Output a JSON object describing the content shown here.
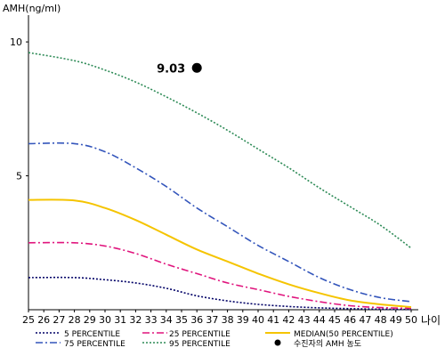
{
  "chart_data": {
    "type": "line",
    "ylabel": "AMH(ng/ml)",
    "xlabel": "나이",
    "xlim": [
      25,
      50
    ],
    "ylim": [
      0,
      11
    ],
    "x_ticks": [
      25,
      26,
      27,
      28,
      29,
      30,
      31,
      32,
      33,
      34,
      35,
      36,
      37,
      38,
      39,
      40,
      41,
      42,
      43,
      44,
      45,
      46,
      47,
      48,
      49,
      50
    ],
    "y_ticks": [
      5,
      10
    ],
    "series": [
      {
        "name": "5 PERCENTILE",
        "color": "#000066",
        "dash": "2,2",
        "points": [
          [
            25,
            1.2
          ],
          [
            28,
            1.2
          ],
          [
            30,
            1.12
          ],
          [
            32,
            1.0
          ],
          [
            34,
            0.8
          ],
          [
            36,
            0.52
          ],
          [
            38,
            0.33
          ],
          [
            40,
            0.2
          ],
          [
            42,
            0.12
          ],
          [
            44,
            0.07
          ],
          [
            46,
            0.04
          ],
          [
            48,
            0.02
          ],
          [
            50,
            0.01
          ]
        ]
      },
      {
        "name": "25 PERCENTILE",
        "color": "#e0147d",
        "dash": "8,3,2,3",
        "points": [
          [
            25,
            2.5
          ],
          [
            28,
            2.5
          ],
          [
            30,
            2.38
          ],
          [
            32,
            2.1
          ],
          [
            34,
            1.7
          ],
          [
            36,
            1.35
          ],
          [
            38,
            1.0
          ],
          [
            40,
            0.75
          ],
          [
            42,
            0.5
          ],
          [
            44,
            0.3
          ],
          [
            46,
            0.15
          ],
          [
            48,
            0.08
          ],
          [
            50,
            0.05
          ]
        ]
      },
      {
        "name": "MEDIAN(50 PERCENTILE)",
        "color": "#f5c400",
        "dash": "",
        "points": [
          [
            25,
            4.1
          ],
          [
            28,
            4.08
          ],
          [
            30,
            3.8
          ],
          [
            32,
            3.35
          ],
          [
            34,
            2.8
          ],
          [
            36,
            2.25
          ],
          [
            38,
            1.8
          ],
          [
            40,
            1.35
          ],
          [
            42,
            0.95
          ],
          [
            44,
            0.62
          ],
          [
            46,
            0.35
          ],
          [
            48,
            0.2
          ],
          [
            50,
            0.1
          ]
        ]
      },
      {
        "name": "75 PERCENTILE",
        "color": "#3355bb",
        "dash": "8,3,2,3",
        "points": [
          [
            25,
            6.2
          ],
          [
            28,
            6.2
          ],
          [
            30,
            5.9
          ],
          [
            32,
            5.3
          ],
          [
            34,
            4.6
          ],
          [
            36,
            3.8
          ],
          [
            38,
            3.1
          ],
          [
            40,
            2.4
          ],
          [
            42,
            1.8
          ],
          [
            44,
            1.2
          ],
          [
            46,
            0.75
          ],
          [
            48,
            0.45
          ],
          [
            50,
            0.3
          ]
        ]
      },
      {
        "name": "95 PERCENTILE",
        "color": "#2e8b57",
        "dash": "2,2",
        "points": [
          [
            25,
            9.6
          ],
          [
            28,
            9.3
          ],
          [
            30,
            8.95
          ],
          [
            32,
            8.5
          ],
          [
            34,
            7.95
          ],
          [
            36,
            7.35
          ],
          [
            38,
            6.7
          ],
          [
            40,
            6.0
          ],
          [
            42,
            5.3
          ],
          [
            44,
            4.55
          ],
          [
            46,
            3.85
          ],
          [
            48,
            3.15
          ],
          [
            50,
            2.3
          ]
        ]
      }
    ],
    "marker": {
      "name": "수진자의 AMH 농도",
      "x": 36,
      "y": 9.03,
      "label": "9.03",
      "color": "#000000"
    },
    "legend": {
      "placement": "bottom",
      "order": [
        "5 PERCENTILE",
        "25 PERCENTILE",
        "MEDIAN(50 PERCENTILE)",
        "75 PERCENTILE",
        "95 PERCENTILE",
        "수진자의 AMH 농도"
      ]
    }
  }
}
